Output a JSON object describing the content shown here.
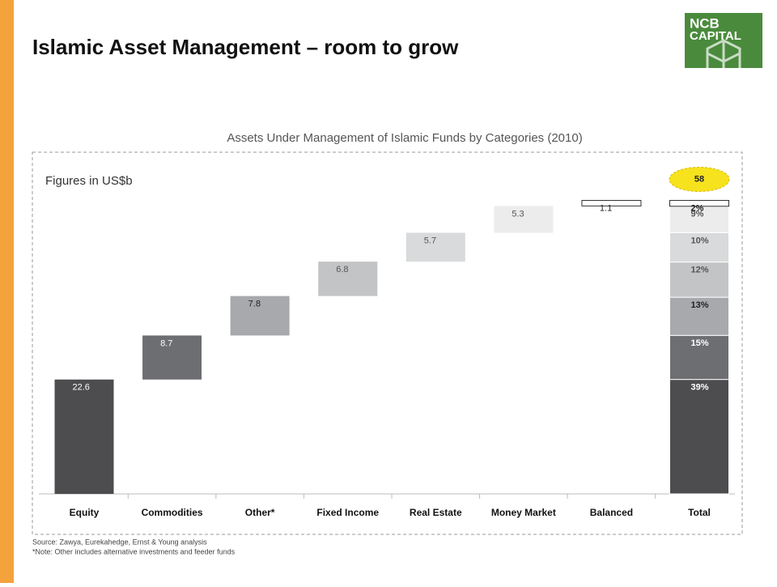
{
  "header": {
    "title": "Islamic Asset Management – room to grow",
    "logo": [
      "NCB",
      "CAPITAL"
    ]
  },
  "chart_data": {
    "type": "waterfall",
    "title": "Assets Under Management of Islamic Funds by Categories (2010)",
    "subtitle": "Figures in US$b",
    "categories": [
      "Equity",
      "Commodities",
      "Other*",
      "Fixed Income",
      "Real Estate",
      "Money Market",
      "Balanced"
    ],
    "values": [
      22.6,
      8.7,
      7.8,
      6.8,
      5.7,
      5.3,
      1.1
    ],
    "colors": [
      "#4d4d4f",
      "#6d6e71",
      "#a7a9ac",
      "#c3c4c6",
      "#d9dadb",
      "#ececec",
      "#ffffff"
    ],
    "label_colors": [
      "#ffffff",
      "#ffffff",
      "#222222",
      "#555555",
      "#555555",
      "#555555",
      "#222222"
    ],
    "total": {
      "label": "Total",
      "value": 58,
      "shares": [
        39,
        15,
        13,
        12,
        10,
        9,
        2
      ],
      "share_labels": [
        "39%",
        "15%",
        "13%",
        "12%",
        "10%",
        "9%",
        "2%"
      ]
    },
    "ylim": [
      0,
      60
    ]
  },
  "footer": {
    "source": "Source: Zawya, Eurekahedge, Ernst & Young analysis",
    "note": "*Note: Other includes alternative investments and feeder funds"
  }
}
